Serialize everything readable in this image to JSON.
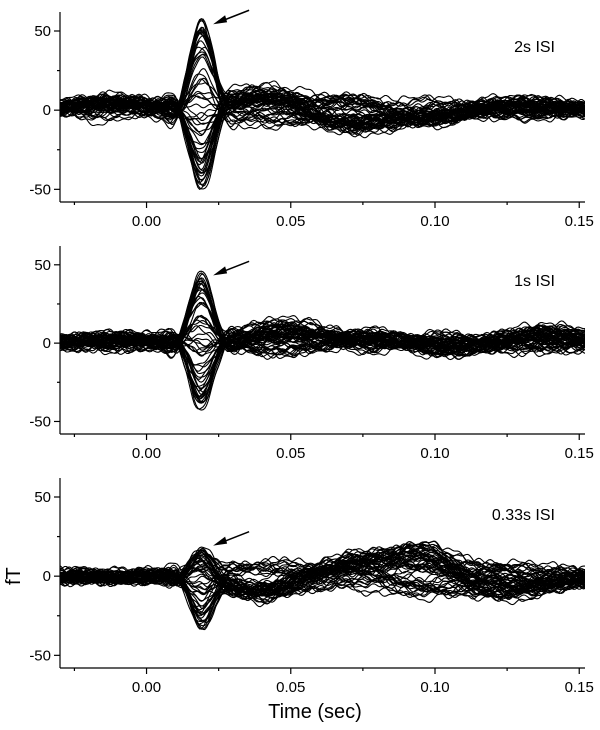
{
  "chart_data": [
    {
      "type": "line",
      "annotation": "2s ISI",
      "xlim": [
        -0.03,
        0.152
      ],
      "ylim": [
        -58,
        62
      ],
      "x_ticks": [
        0.0,
        0.05,
        0.1,
        0.15
      ],
      "x_tick_labels": [
        "0.00",
        "0.05",
        "0.10",
        "0.15"
      ],
      "y_ticks": [
        -50,
        0,
        50
      ],
      "y_tick_labels": [
        "-50",
        "0",
        "50"
      ],
      "arrow_target": [
        0.021,
        53
      ],
      "peak_x": 0.019,
      "peak_max": 53,
      "trough_min": -48,
      "trace_count": 60,
      "features": [
        {
          "x": -0.012,
          "amp": 5
        },
        {
          "x": 0.04,
          "amp": 10
        },
        {
          "x": 0.07,
          "amp": -9
        },
        {
          "x": 0.095,
          "amp": -6
        },
        {
          "x": 0.13,
          "amp": 4
        }
      ]
    },
    {
      "type": "line",
      "annotation": "1s ISI",
      "xlim": [
        -0.03,
        0.152
      ],
      "ylim": [
        -58,
        62
      ],
      "x_ticks": [
        0.0,
        0.05,
        0.1,
        0.15
      ],
      "x_tick_labels": [
        "0.00",
        "0.05",
        "0.10",
        "0.15"
      ],
      "y_ticks": [
        -50,
        0,
        50
      ],
      "y_tick_labels": [
        "-50",
        "0",
        "50"
      ],
      "arrow_target": [
        0.021,
        42
      ],
      "peak_x": 0.019,
      "peak_max": 42,
      "trough_min": -40,
      "trace_count": 60,
      "features": [
        {
          "x": -0.01,
          "amp": 3
        },
        {
          "x": 0.048,
          "amp": 10
        },
        {
          "x": 0.08,
          "amp": 4
        },
        {
          "x": 0.105,
          "amp": -4
        },
        {
          "x": 0.138,
          "amp": 6
        }
      ]
    },
    {
      "type": "line",
      "annotation": "0.33s ISI",
      "xlim": [
        -0.03,
        0.152
      ],
      "ylim": [
        -58,
        62
      ],
      "x_ticks": [
        0.0,
        0.05,
        0.1,
        0.15
      ],
      "x_tick_labels": [
        "0.00",
        "0.05",
        "0.10",
        "0.15"
      ],
      "y_ticks": [
        -50,
        0,
        50
      ],
      "y_tick_labels": [
        "-50",
        "0",
        "50"
      ],
      "ylabel": "fT",
      "xlabel": "Time (sec)",
      "arrow_target": [
        0.021,
        18
      ],
      "peak_x": 0.019,
      "peak_max": 18,
      "trough_min": -27,
      "trace_count": 60,
      "features": [
        {
          "x": 0.04,
          "amp": -10
        },
        {
          "x": 0.07,
          "amp": 8
        },
        {
          "x": 0.094,
          "amp": 15
        },
        {
          "x": 0.122,
          "amp": -9
        },
        {
          "x": 0.14,
          "amp": -4
        }
      ]
    }
  ]
}
